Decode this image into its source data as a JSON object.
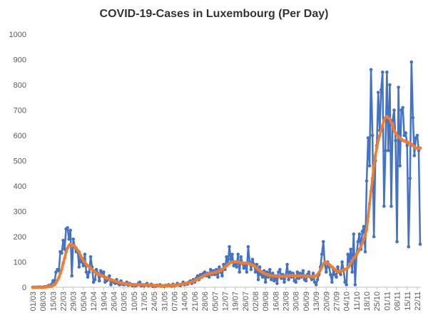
{
  "chart_data": {
    "type": "line",
    "title": "COVID-19-Cases in Luxembourg (Per Day)",
    "categories": [
      "01/03",
      null,
      null,
      null,
      null,
      null,
      null,
      "08/03",
      null,
      null,
      null,
      null,
      null,
      null,
      "15/03",
      null,
      null,
      null,
      null,
      null,
      null,
      "22/03",
      null,
      null,
      null,
      null,
      null,
      null,
      "29/03",
      null,
      null,
      null,
      null,
      null,
      null,
      "05/04",
      null,
      null,
      null,
      null,
      null,
      null,
      "12/04",
      null,
      null,
      null,
      null,
      null,
      null,
      "19/04",
      null,
      null,
      null,
      null,
      null,
      null,
      "26/04",
      null,
      null,
      null,
      null,
      null,
      null,
      "03/05",
      null,
      null,
      null,
      null,
      null,
      null,
      "10/05",
      null,
      null,
      null,
      null,
      null,
      null,
      "17/05",
      null,
      null,
      null,
      null,
      null,
      null,
      "24/05",
      null,
      null,
      null,
      null,
      null,
      null,
      "31/05",
      null,
      null,
      null,
      null,
      null,
      null,
      "07/06",
      null,
      null,
      null,
      null,
      null,
      null,
      "14/06",
      null,
      null,
      null,
      null,
      null,
      null,
      "21/06",
      null,
      null,
      null,
      null,
      null,
      null,
      "28/06",
      null,
      null,
      null,
      null,
      null,
      null,
      "05/07",
      null,
      null,
      null,
      null,
      null,
      null,
      "12/07",
      null,
      null,
      null,
      null,
      null,
      null,
      "19/07",
      null,
      null,
      null,
      null,
      null,
      null,
      "26/07",
      null,
      null,
      null,
      null,
      null,
      null,
      "02/08",
      null,
      null,
      null,
      null,
      null,
      null,
      "09/08",
      null,
      null,
      null,
      null,
      null,
      null,
      "16/08",
      null,
      null,
      null,
      null,
      null,
      null,
      "23/08",
      null,
      null,
      null,
      null,
      null,
      null,
      "30/08",
      null,
      null,
      null,
      null,
      null,
      null,
      "06/09",
      null,
      null,
      null,
      null,
      null,
      null,
      "13/09",
      null,
      null,
      null,
      null,
      null,
      null,
      "20/09",
      null,
      null,
      null,
      null,
      null,
      null,
      "27/09",
      null,
      null,
      null,
      null,
      null,
      null,
      "04/10",
      null,
      null,
      null,
      null,
      null,
      null,
      "11/10",
      null,
      null,
      null,
      null,
      null,
      null,
      "18/10",
      null,
      null,
      null,
      null,
      null,
      null,
      "25/10",
      null,
      null,
      null,
      null,
      null,
      null,
      "01/11",
      null,
      null,
      null,
      null,
      null,
      null,
      "08/11",
      null,
      null,
      null,
      null,
      null,
      null,
      "15/11",
      null,
      null,
      null,
      null,
      null,
      null,
      "22/11",
      null,
      null
    ],
    "series": [
      {
        "color": "#4472c4",
        "values": [
          0,
          0,
          0,
          0,
          1,
          1,
          0,
          0,
          2,
          2,
          3,
          7,
          5,
          12,
          26,
          21,
          59,
          70,
          65,
          140,
          135,
          185,
          150,
          230,
          235,
          190,
          225,
          45,
          190,
          160,
          140,
          145,
          80,
          120,
          100,
          85,
          130,
          60,
          40,
          60,
          120,
          80,
          20,
          30,
          70,
          55,
          25,
          65,
          45,
          60,
          20,
          25,
          30,
          45,
          10,
          25,
          20,
          15,
          30,
          15,
          10,
          25,
          12,
          10,
          12,
          20,
          8,
          15,
          10,
          5,
          10,
          5,
          8,
          15,
          20,
          5,
          10,
          5,
          10,
          15,
          5,
          8,
          12,
          3,
          5,
          3,
          8,
          5,
          10,
          4,
          6,
          3,
          8,
          5,
          10,
          6,
          4,
          12,
          5,
          8,
          15,
          10,
          6,
          12,
          20,
          10,
          15,
          12,
          20,
          25,
          15,
          30,
          20,
          35,
          45,
          30,
          50,
          40,
          55,
          60,
          45,
          55,
          40,
          70,
          50,
          65,
          50,
          70,
          40,
          80,
          60,
          45,
          90,
          70,
          120,
          90,
          160,
          110,
          130,
          85,
          100,
          80,
          130,
          60,
          120,
          95,
          75,
          90,
          60,
          160,
          100,
          70,
          110,
          90,
          60,
          90,
          30,
          80,
          50,
          40,
          65,
          20,
          60,
          40,
          70,
          30,
          55,
          25,
          45,
          15,
          60,
          70,
          35,
          50,
          20,
          45,
          90,
          30,
          60,
          40,
          55,
          25,
          20,
          60,
          35,
          55,
          40,
          65,
          30,
          25,
          50,
          60,
          40,
          30,
          55,
          20,
          10,
          30,
          50,
          80,
          130,
          180,
          95,
          60,
          100,
          80,
          50,
          20,
          70,
          50,
          40,
          80,
          60,
          50,
          100,
          70,
          20,
          10,
          130,
          100,
          150,
          60,
          210,
          10,
          130,
          180,
          210,
          150,
          220,
          240,
          140,
          420,
          590,
          480,
          860,
          600,
          200,
          500,
          560,
          770,
          620,
          780,
          850,
          320,
          540,
          850,
          540,
          800,
          320,
          660,
          700,
          580,
          180,
          790,
          480,
          700,
          710,
          600,
          610,
          560,
          160,
          430,
          890,
          670,
          520,
          590,
          600,
          540,
          170
        ]
      },
      {
        "color": "#ed7d31",
        "values": [
          0,
          0,
          0,
          0,
          0,
          0,
          0,
          1,
          1,
          1,
          2,
          3,
          3,
          4,
          8,
          10,
          18,
          28,
          38,
          55,
          72,
          95,
          115,
          140,
          155,
          165,
          170,
          165,
          165,
          160,
          155,
          145,
          140,
          125,
          115,
          105,
          100,
          90,
          85,
          80,
          75,
          70,
          65,
          60,
          55,
          52,
          50,
          48,
          45,
          42,
          40,
          38,
          35,
          32,
          30,
          28,
          26,
          24,
          22,
          20,
          18,
          17,
          16,
          15,
          14,
          13,
          12,
          12,
          11,
          11,
          10,
          10,
          10,
          10,
          10,
          10,
          10,
          9,
          9,
          9,
          8,
          8,
          8,
          8,
          7,
          7,
          6,
          6,
          6,
          6,
          6,
          6,
          6,
          6,
          7,
          7,
          7,
          7,
          8,
          8,
          9,
          10,
          11,
          12,
          13,
          14,
          15,
          17,
          18,
          19,
          21,
          23,
          26,
          29,
          32,
          35,
          38,
          41,
          44,
          47,
          50,
          52,
          54,
          55,
          56,
          57,
          58,
          60,
          62,
          64,
          66,
          70,
          75,
          80,
          85,
          90,
          95,
          98,
          100,
          100,
          100,
          100,
          100,
          98,
          97,
          96,
          95,
          95,
          95,
          95,
          93,
          90,
          88,
          85,
          80,
          75,
          70,
          66,
          62,
          58,
          55,
          52,
          50,
          48,
          47,
          46,
          45,
          45,
          44,
          44,
          43,
          43,
          43,
          43,
          43,
          43,
          44,
          45,
          46,
          46,
          46,
          46,
          45,
          45,
          45,
          45,
          45,
          45,
          45,
          44,
          44,
          43,
          42,
          42,
          42,
          42,
          45,
          50,
          58,
          68,
          80,
          92,
          98,
          98,
          95,
          90,
          85,
          80,
          75,
          70,
          65,
          62,
          62,
          63,
          65,
          68,
          70,
          72,
          78,
          85,
          95,
          105,
          115,
          120,
          130,
          140,
          150,
          160,
          175,
          190,
          205,
          230,
          280,
          330,
          380,
          430,
          480,
          520,
          550,
          580,
          600,
          620,
          640,
          660,
          670,
          675,
          670,
          665,
          650,
          640,
          620,
          610,
          600,
          595,
          590,
          585,
          580,
          578,
          575,
          575,
          570,
          570,
          565,
          560,
          555,
          550,
          550,
          548,
          550
        ]
      }
    ],
    "ylim": [
      0,
      1000
    ],
    "yticks": [
      0,
      100,
      200,
      300,
      400,
      500,
      600,
      700,
      800,
      900,
      1000
    ],
    "grid": false
  }
}
